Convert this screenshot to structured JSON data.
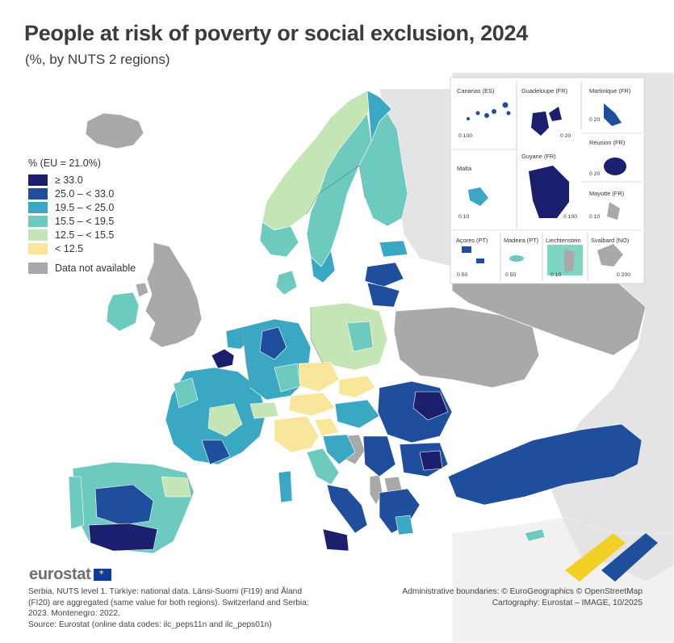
{
  "title": "People at risk of poverty or social exclusion, 2024",
  "subtitle": "(%, by NUTS 2 regions)",
  "legend": {
    "title": "% (EU = 21.0%)",
    "classes": [
      {
        "label": "≥ 33.0",
        "color": "#1b1f6e"
      },
      {
        "label": "25.0 – < 33.0",
        "color": "#1f4f9c"
      },
      {
        "label": "19.5 – < 25.0",
        "color": "#3ba8c3"
      },
      {
        "label": "15.5 – < 19.5",
        "color": "#6ccabf"
      },
      {
        "label": "12.5 – < 15.5",
        "color": "#c3e6b4"
      },
      {
        "label": "< 12.5",
        "color": "#f8e79a"
      }
    ],
    "na": {
      "label": "Data not available",
      "color": "#a9a9a9"
    }
  },
  "insets": {
    "canarias": {
      "name": "Canarias (ES)",
      "scale": "0  100"
    },
    "guadeloupe": {
      "name": "Guadeloupe (FR)",
      "scale": "0  20"
    },
    "martinique": {
      "name": "Martinique (FR)",
      "scale": "0  20"
    },
    "reunion": {
      "name": "Réunion (FR)",
      "scale": "0  20"
    },
    "malta": {
      "name": "Malta",
      "scale": "0  10"
    },
    "guyane": {
      "name": "Guyane (FR)",
      "scale": "0  100"
    },
    "mayotte": {
      "name": "Mayotte (FR)",
      "scale": "0  10"
    },
    "acores": {
      "name": "Açores (PT)",
      "scale": "0  50"
    },
    "madeira": {
      "name": "Madeira (PT)",
      "scale": "0  50"
    },
    "liechtenstein": {
      "name": "Liechtenstein",
      "scale": "0  10"
    },
    "svalbard": {
      "name": "Svalbard (NO)",
      "scale": "0  200"
    }
  },
  "logo": "eurostat",
  "note_lines": [
    "Serbia, NUTS level 1. Türkiye: national data. Länsi-Suomi (FI19) and Åland",
    "(FI20) are aggregated (same value for both regions). Switzerland and Serbia:",
    "2023. Montenegro: 2022.",
    "Source: Eurostat (online data codes: ilc_peps11n and ilc_peps01n)"
  ],
  "credits_lines": [
    "Administrative boundaries: © EuroGeographics © OpenStreetMap",
    "Cartography: Eurostat – IMAGE, 10/2025"
  ]
}
